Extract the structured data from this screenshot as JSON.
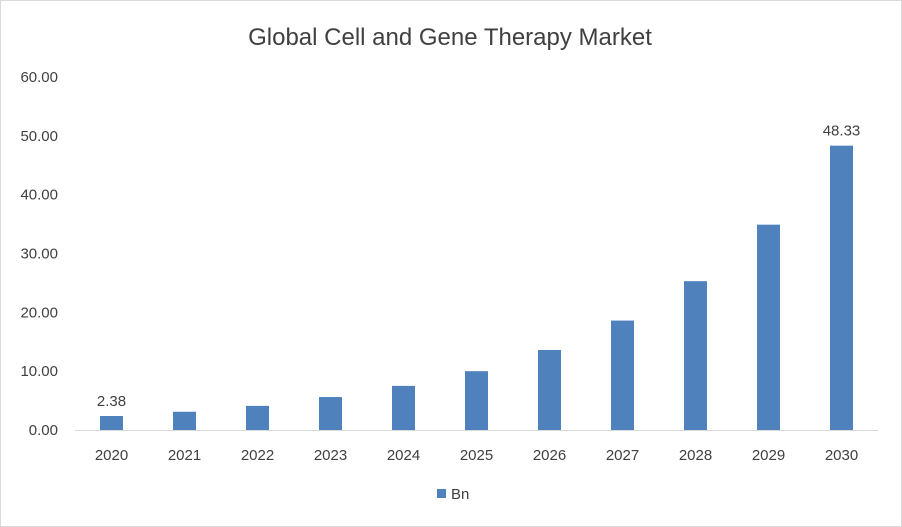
{
  "chart_data": {
    "type": "bar",
    "title": "Global Cell and Gene Therapy Market",
    "xlabel": "",
    "ylabel": "",
    "categories": [
      "2020",
      "2021",
      "2022",
      "2023",
      "2024",
      "2025",
      "2026",
      "2027",
      "2028",
      "2029",
      "2030"
    ],
    "series": [
      {
        "name": "Bn",
        "values": [
          2.38,
          3.1,
          4.1,
          5.6,
          7.5,
          10.0,
          13.6,
          18.6,
          25.3,
          34.9,
          48.33
        ],
        "color": "#4f81bd"
      }
    ],
    "ylim": [
      0,
      60
    ],
    "yticks": [
      "0.00",
      "10.00",
      "20.00",
      "30.00",
      "40.00",
      "50.00",
      "60.00"
    ],
    "data_labels": [
      {
        "index": 0,
        "text": "2.38"
      },
      {
        "index": 10,
        "text": "48.33"
      }
    ],
    "grid": false,
    "legend_position": "bottom"
  }
}
